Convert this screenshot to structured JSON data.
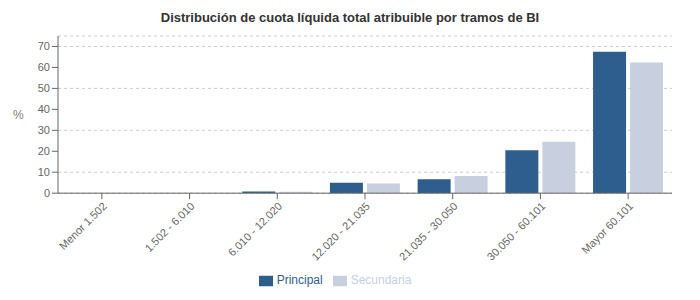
{
  "chart_data": {
    "type": "bar",
    "title": "Distribución de cuota líquida total atribuible por tramos de BI",
    "ylabel": "%",
    "categories": [
      "Menor 1.502",
      "1.502 - 6.010",
      "6.010 - 12.020",
      "12.020 - 21.035",
      "21.035 - 30.050",
      "30.050 - 60.101",
      "Mayor 60.101"
    ],
    "series": [
      {
        "name": "Principal",
        "color": "#2E5E8E",
        "values": [
          0.0,
          0.0,
          0.8,
          5.0,
          6.7,
          20.5,
          67.5
        ]
      },
      {
        "name": "Secundaria",
        "color": "#C8D0DF",
        "values": [
          0.0,
          0.0,
          0.7,
          4.6,
          8.2,
          24.5,
          62.3
        ]
      }
    ],
    "ylim": [
      0,
      75
    ],
    "yticks": [
      0,
      10,
      20,
      30,
      40,
      50,
      60,
      70
    ],
    "grid": true,
    "legend": "bottom"
  }
}
